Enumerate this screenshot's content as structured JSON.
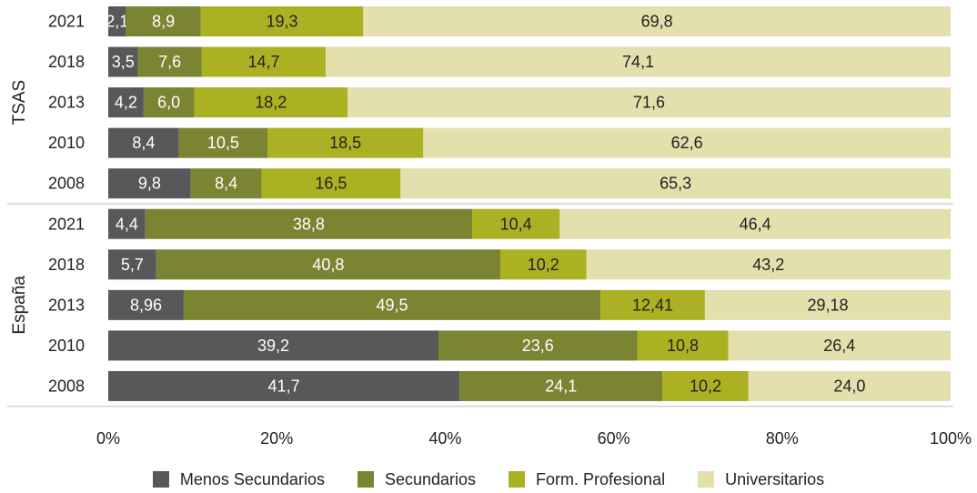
{
  "chart_data": {
    "type": "bar",
    "orientation": "horizontal",
    "stacked": true,
    "groups": [
      {
        "name": "TSAS",
        "rows": [
          {
            "year": "2021",
            "values": [
              "2,1",
              "8,9",
              "19,3",
              "69,8"
            ]
          },
          {
            "year": "2018",
            "values": [
              "3,5",
              "7,6",
              "14,7",
              "74,1"
            ]
          },
          {
            "year": "2013",
            "values": [
              "4,2",
              "6,0",
              "18,2",
              "71,6"
            ]
          },
          {
            "year": "2010",
            "values": [
              "8,4",
              "10,5",
              "18,5",
              "62,6"
            ]
          },
          {
            "year": "2008",
            "values": [
              "9,8",
              "8,4",
              "16,5",
              "65,3"
            ]
          }
        ]
      },
      {
        "name": "España",
        "rows": [
          {
            "year": "2021",
            "values": [
              "4,4",
              "38,8",
              "10,4",
              "46,4"
            ]
          },
          {
            "year": "2018",
            "values": [
              "5,7",
              "40,8",
              "10,2",
              "43,2"
            ]
          },
          {
            "year": "2013",
            "values": [
              "8,96",
              "49,5",
              "12,41",
              "29,18"
            ]
          },
          {
            "year": "2010",
            "values": [
              "39,2",
              "23,6",
              "10,8",
              "26,4"
            ]
          },
          {
            "year": "2008",
            "values": [
              "41,7",
              "24,1",
              "10,2",
              "24,0"
            ]
          }
        ]
      }
    ],
    "series": [
      {
        "name": "Menos Secundarios",
        "color": "#58585a"
      },
      {
        "name": "Secundarios",
        "color": "#7a8431"
      },
      {
        "name": "Form. Profesional",
        "color": "#acb123"
      },
      {
        "name": "Universitarios",
        "color": "#e3e0ae"
      }
    ],
    "xticks": [
      "0%",
      "20%",
      "40%",
      "60%",
      "80%",
      "100%"
    ],
    "xlim": [
      0,
      100
    ],
    "legend_position": "bottom",
    "grid": false
  }
}
